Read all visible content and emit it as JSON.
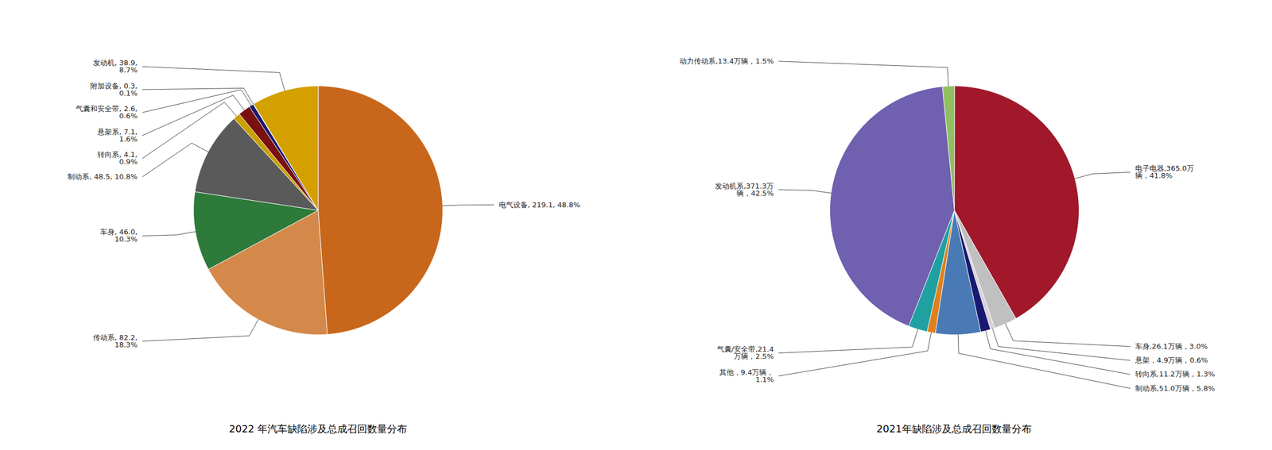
{
  "chart_data": [
    {
      "type": "pie",
      "title": "2022 年汽车缺陷涉及总成召回数量分布",
      "values": [
        219.1,
        82.2,
        46.0,
        48.5,
        4.1,
        7.1,
        2.6,
        0.3,
        38.9
      ],
      "value_labels": [
        "电气设备, 219.1, 48.8%",
        "传动系, 82.2,\n18.3%",
        "车身, 46.0,\n10.3%",
        "制动系, 48.5, 10.8%",
        "转向系, 4.1,\n0.9%",
        "悬架系, 7.1,\n1.6%",
        "气囊和安全带, 2.6,\n0.6%",
        "附加设备, 0.3,\n0.1%",
        "发动机, 38.9,\n8.7%"
      ],
      "colors": [
        "#C8671B",
        "#D4894A",
        "#2D7A3A",
        "#5A5A5A",
        "#C8A000",
        "#7A1010",
        "#191970",
        "#888888",
        "#D4A000"
      ],
      "data_labels": true
    },
    {
      "type": "pie",
      "title": "2021年缺陷涉及总成召回数量分布",
      "values": [
        365.0,
        26.1,
        4.9,
        11.2,
        51.0,
        9.4,
        21.4,
        371.3,
        13.4
      ],
      "value_labels": [
        "电子电器,365.0万\n辆，41.8%",
        "车身,26.1万辆，3.0%",
        "悬架，4.9万辆，0.6%",
        "转向系,11.2万辆，1.3%",
        "制动系,51.0万辆，5.8%",
        "其他，9.4万辆，\n1.1%",
        "气囊/安全带,21.4\n万辆，2.5%",
        "发动机系,371.3万\n辆，42.5%",
        "动力传动系,13.4万辆，1.5%"
      ],
      "colors": [
        "#A0182A",
        "#C0C0C0",
        "#D8D0D8",
        "#191970",
        "#4A7AB5",
        "#E08020",
        "#20A0A0",
        "#7060B0",
        "#90C060"
      ],
      "data_labels": true
    }
  ]
}
